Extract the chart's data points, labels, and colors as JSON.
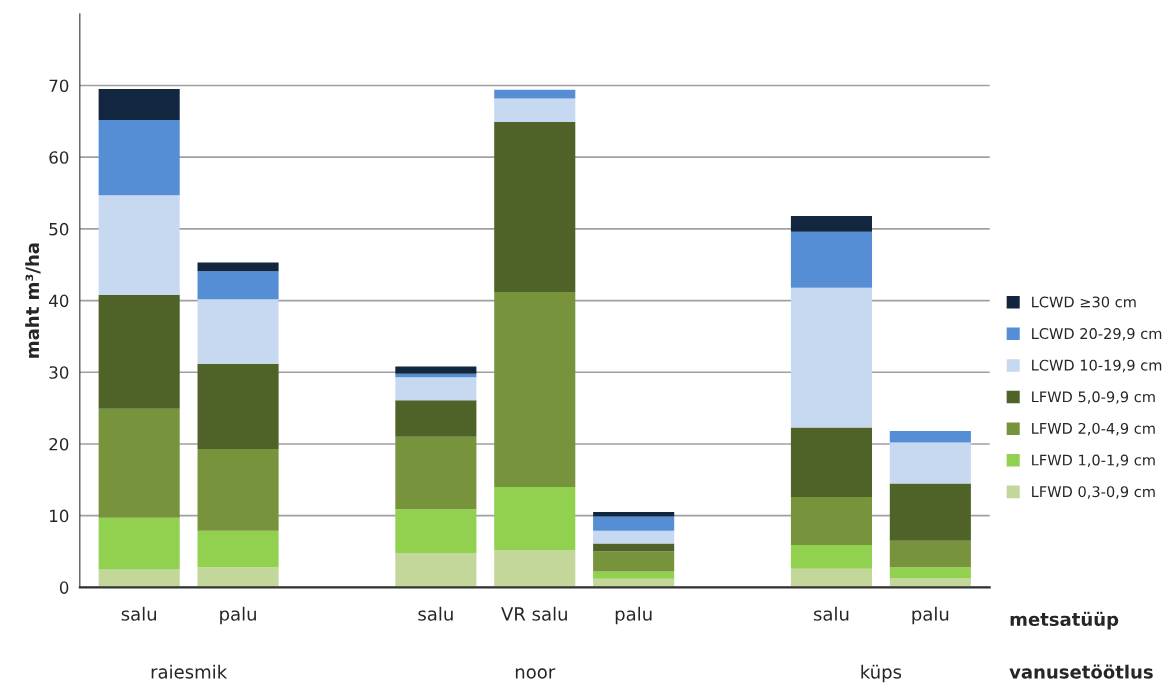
{
  "chart_data": {
    "type": "bar",
    "stacked": true,
    "ylabel": "maht m³/ha",
    "categories": [
      "salu",
      "palu",
      null,
      "salu",
      "VR salu",
      "palu",
      null,
      "salu",
      "palu"
    ],
    "series": [
      {
        "name": "LFWD 0,3-0,9 cm",
        "color": "#c4d79b",
        "values": [
          2.5,
          2.8,
          null,
          4.8,
          5.2,
          1.2,
          null,
          2.6,
          1.3
        ]
      },
      {
        "name": "LFWD 1,0-1,9 cm",
        "color": "#92d050",
        "values": [
          7.2,
          5.1,
          null,
          6.1,
          8.8,
          1.0,
          null,
          3.3,
          1.5
        ]
      },
      {
        "name": "LFWD 2,0-4,9 cm",
        "color": "#77933c",
        "values": [
          15.2,
          11.4,
          null,
          10.1,
          27.2,
          2.8,
          null,
          6.7,
          3.7
        ]
      },
      {
        "name": "LFWD 5,0-9,9 cm",
        "color": "#4f6228",
        "values": [
          15.9,
          11.9,
          null,
          5.1,
          23.7,
          1.1,
          null,
          9.7,
          8.0
        ]
      },
      {
        "name": "LCWD 10-19,9 cm",
        "color": "#c6d9f1",
        "values": [
          13.9,
          9.0,
          null,
          3.2,
          3.3,
          1.8,
          null,
          19.5,
          5.7
        ]
      },
      {
        "name": "LCWD 20-29,9 cm",
        "color": "#558ed5",
        "values": [
          10.5,
          3.9,
          null,
          0.5,
          1.2,
          2.0,
          null,
          7.8,
          1.6
        ]
      },
      {
        "name": "LCWD ≥30 cm",
        "color": "#12263f",
        "values": [
          4.3,
          1.2,
          null,
          1.0,
          null,
          0.6,
          null,
          2.2,
          null
        ]
      }
    ],
    "ylim": [
      0,
      80
    ],
    "yticks": [
      0,
      10,
      20,
      30,
      40,
      50,
      60,
      70
    ],
    "grid": "y",
    "legend": "right",
    "annotations": [
      "metsatüüp",
      "vanusetöötlus",
      "raiesmik",
      "noor",
      "küps"
    ]
  }
}
